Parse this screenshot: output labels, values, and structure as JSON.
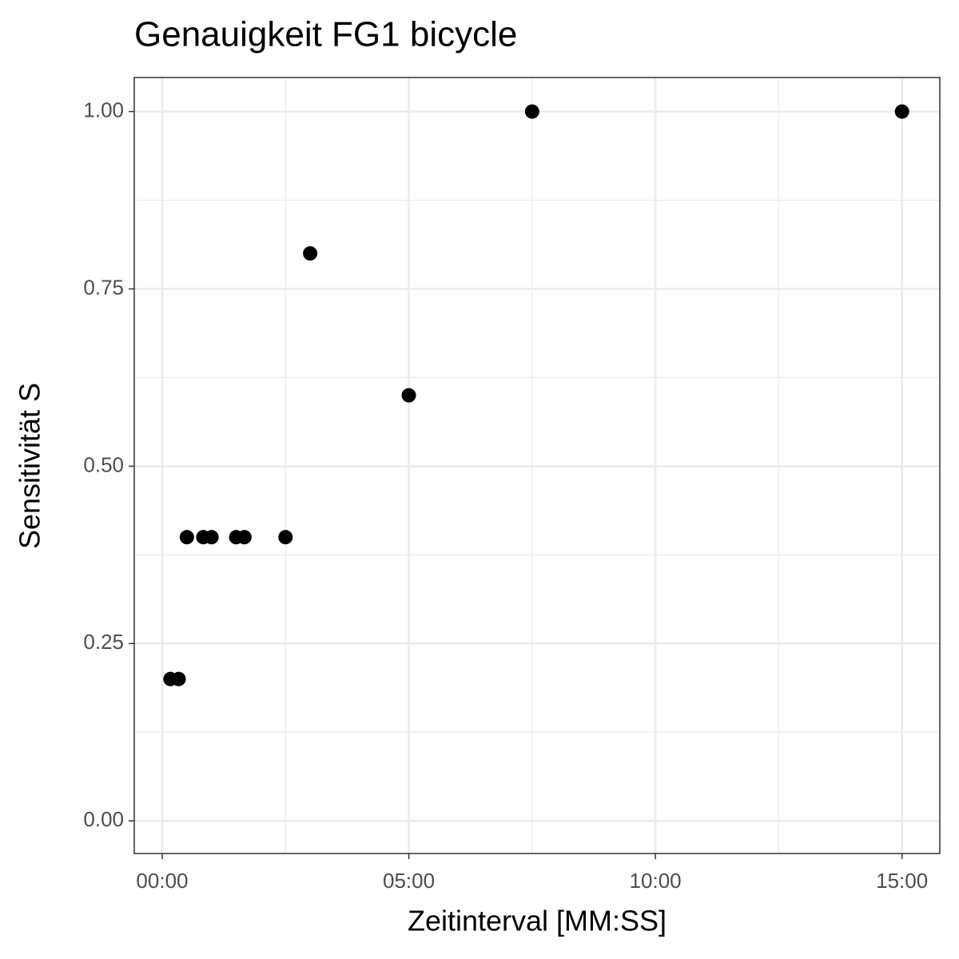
{
  "chart_data": {
    "type": "scatter",
    "title": "Genauigkeit FG1 bicycle",
    "x_label": "Zeitinterval [MM:SS]",
    "y_label": "Sensitivität S",
    "x": [
      10,
      20,
      30,
      50,
      60,
      90,
      100,
      150,
      180,
      300,
      450,
      900
    ],
    "values": [
      0.2,
      0.2,
      0.4,
      0.4,
      0.4,
      0.4,
      0.4,
      0.4,
      0.8,
      0.6,
      1.0,
      1.0
    ],
    "color": "#000000",
    "xlim": [
      -34,
      946
    ],
    "ylim": [
      -0.046,
      1.048
    ],
    "xticks": [
      {
        "value": 0,
        "label": "00:00"
      },
      {
        "value": 300,
        "label": "05:00"
      },
      {
        "value": 600,
        "label": "10:00"
      },
      {
        "value": 900,
        "label": "15:00"
      }
    ],
    "yticks": [
      {
        "value": 0,
        "label": "0.00"
      },
      {
        "value": 0.25,
        "label": "0.25"
      },
      {
        "value": 0.5,
        "label": "0.50"
      },
      {
        "value": 0.75,
        "label": "0.75"
      },
      {
        "value": 1,
        "label": "1.00"
      }
    ],
    "grid": true
  }
}
